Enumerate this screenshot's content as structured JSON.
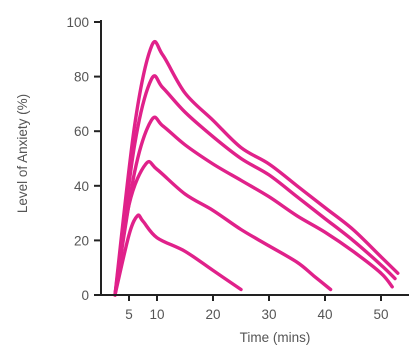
{
  "chart_data": {
    "type": "line",
    "xlabel": "Time (mins)",
    "ylabel": "Level of Anxiety (%)",
    "xlim": [
      0,
      55
    ],
    "ylim": [
      0,
      100
    ],
    "x_ticks": [
      5,
      10,
      20,
      30,
      40,
      50
    ],
    "y_ticks": [
      0,
      20,
      40,
      60,
      80,
      100
    ],
    "grid": false,
    "line_color": "#e0218a",
    "series": [
      {
        "x": [
          2.5,
          6,
          9,
          11,
          15,
          20,
          25,
          30,
          35,
          40,
          45,
          50,
          53
        ],
        "values": [
          0,
          62,
          91,
          88,
          74,
          64,
          54,
          48,
          40,
          32,
          24,
          14,
          8
        ]
      },
      {
        "x": [
          2.5,
          6,
          9,
          11,
          15,
          20,
          25,
          30,
          35,
          40,
          45,
          50,
          52.5
        ],
        "values": [
          0,
          55,
          79,
          76,
          67,
          58,
          50,
          44,
          36,
          28,
          20,
          11,
          6
        ]
      },
      {
        "x": [
          2.5,
          6,
          9,
          11,
          15,
          20,
          25,
          30,
          35,
          40,
          45,
          50,
          52
        ],
        "values": [
          0,
          45,
          64,
          62,
          55,
          48,
          42,
          36,
          29,
          23,
          16,
          8,
          3
        ]
      },
      {
        "x": [
          2.5,
          5,
          8,
          10,
          15,
          20,
          25,
          30,
          35,
          38,
          41
        ],
        "values": [
          0,
          33,
          48,
          46,
          37,
          31,
          24,
          18,
          12,
          7,
          2
        ]
      },
      {
        "x": [
          2.5,
          5,
          6.5,
          7.5,
          10,
          15,
          20,
          25
        ],
        "values": [
          0,
          22,
          29,
          27,
          21,
          16,
          9,
          2
        ]
      }
    ]
  }
}
